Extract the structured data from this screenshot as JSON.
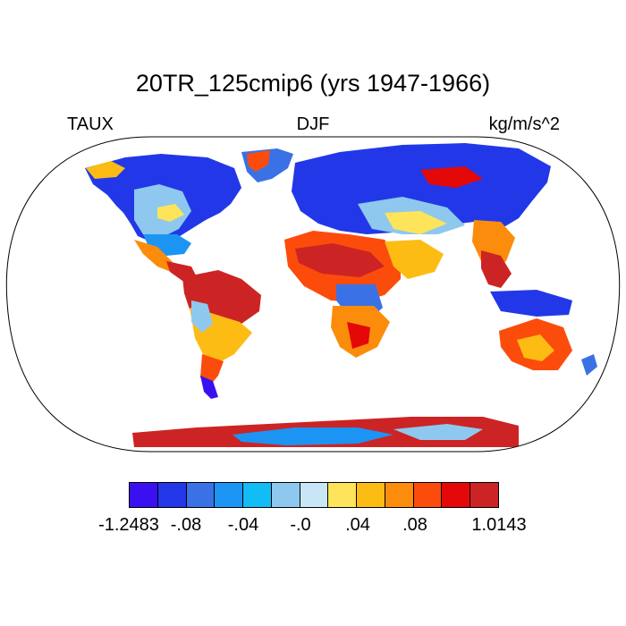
{
  "title": "20TR_125cmip6 (yrs 1947-1966)",
  "left_label": "TAUX",
  "center_label": "DJF",
  "right_label": "kg/m/s^2",
  "colorbar": {
    "colors": [
      "#3a10f0",
      "#2238e8",
      "#3a72e6",
      "#1c94f4",
      "#12bcf4",
      "#8ec8ee",
      "#c8e6f6",
      "#fde45a",
      "#fcbc14",
      "#fc8c0c",
      "#fc4c0c",
      "#e40808",
      "#cc2424"
    ],
    "labels": [
      "-1.2483",
      "-.08",
      "-.04",
      "-.0",
      ".04",
      ".08",
      "1.0143"
    ]
  },
  "colors": {
    "strong_neg": "#3a10f0",
    "neg": "#2238e8",
    "mid_neg": "#3a72e6",
    "light_neg": "#1c94f4",
    "pale_neg": "#8ec8ee",
    "near_zero": "#c8e6f6",
    "small_pos": "#fde45a",
    "pos": "#fcbc14",
    "mid_pos": "#fc8c0c",
    "strong_pos": "#fc4c0c",
    "max_pos": "#cc2424"
  }
}
